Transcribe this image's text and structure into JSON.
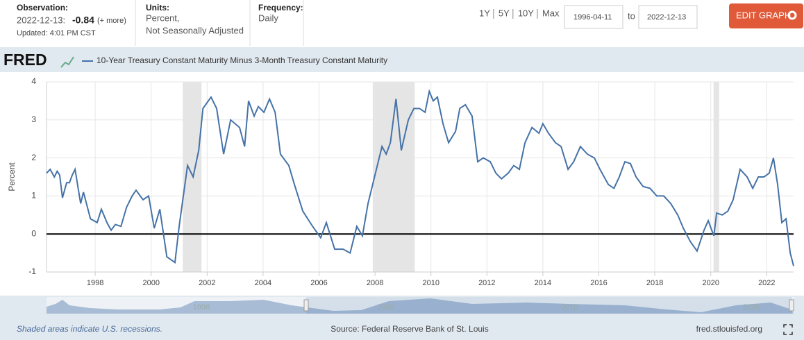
{
  "header": {
    "observation_label": "Observation:",
    "observation_date": "2022-12-13:",
    "observation_value": "-0.84",
    "more": "(+ more)",
    "updated": "Updated: 4:01 PM CST",
    "units_label": "Units:",
    "units_1": "Percent,",
    "units_2": "Not Seasonally Adjusted",
    "frequency_label": "Frequency:",
    "frequency": "Daily",
    "ranges": [
      "1Y",
      "5Y",
      "10Y",
      "Max"
    ],
    "start_date": "1996-04-11",
    "to": "to",
    "end_date": "2022-12-13",
    "edit_button": "EDIT GRAPH"
  },
  "logo": "FRED",
  "footer": {
    "note": "Shaded areas indicate U.S. recessions.",
    "source": "Source: Federal Reserve Bank of St. Louis",
    "site": "fred.stlouisfed.org"
  },
  "navigator": {
    "labels": [
      "1998",
      "2000",
      "2010",
      "2020"
    ]
  },
  "chart_data": {
    "type": "line",
    "ylabel": "Percent",
    "series": [
      {
        "name": "10-Year Treasury Constant Maturity Minus 3-Month Treasury Constant Maturity",
        "color": "#4572a7",
        "x": [
          1996.26,
          1996.39,
          1996.54,
          1996.64,
          1996.73,
          1996.83,
          1996.98,
          1997.08,
          1997.18,
          1997.28,
          1997.48,
          1997.58,
          1997.83,
          1998.07,
          1998.22,
          1998.42,
          1998.57,
          1998.72,
          1998.92,
          1999.12,
          1999.32,
          1999.46,
          1999.71,
          1999.91,
          2000.11,
          2000.31,
          2000.56,
          2000.85,
          2001.0,
          2001.3,
          2001.5,
          2001.7,
          2001.85,
          2002.14,
          2002.34,
          2002.59,
          2002.84,
          2003.16,
          2003.34,
          2003.48,
          2003.68,
          2003.83,
          2004.03,
          2004.23,
          2004.43,
          2004.62,
          2004.92,
          2005.12,
          2005.42,
          2005.77,
          2006.06,
          2006.26,
          2006.56,
          2006.86,
          2007.11,
          2007.35,
          2007.55,
          2007.75,
          2008.05,
          2008.25,
          2008.4,
          2008.55,
          2008.75,
          2008.94,
          2009.19,
          2009.39,
          2009.59,
          2009.79,
          2009.94,
          2010.08,
          2010.23,
          2010.43,
          2010.63,
          2010.88,
          2011.03,
          2011.23,
          2011.47,
          2011.67,
          2011.87,
          2012.12,
          2012.32,
          2012.52,
          2012.76,
          2012.96,
          2013.16,
          2013.36,
          2013.61,
          2013.86,
          2014.0,
          2014.2,
          2014.45,
          2014.65,
          2014.9,
          2015.1,
          2015.34,
          2015.59,
          2015.84,
          2016.04,
          2016.34,
          2016.54,
          2016.73,
          2016.93,
          2017.13,
          2017.33,
          2017.58,
          2017.83,
          2018.07,
          2018.32,
          2018.57,
          2018.82,
          2019.02,
          2019.27,
          2019.51,
          2019.76,
          2019.91,
          2020.11,
          2020.21,
          2020.41,
          2020.61,
          2020.8,
          2021.05,
          2021.3,
          2021.5,
          2021.7,
          2021.9,
          2022.09,
          2022.24,
          2022.39,
          2022.54,
          2022.69,
          2022.84,
          2022.96
        ],
        "values": [
          1.6,
          1.7,
          1.5,
          1.65,
          1.55,
          0.95,
          1.35,
          1.35,
          1.55,
          1.7,
          0.8,
          1.1,
          0.4,
          0.3,
          0.65,
          0.3,
          0.1,
          0.25,
          0.2,
          0.7,
          1.0,
          1.15,
          0.9,
          1.0,
          0.15,
          0.65,
          -0.6,
          -0.75,
          0.2,
          1.8,
          1.5,
          2.2,
          3.3,
          3.6,
          3.3,
          2.1,
          3.0,
          2.8,
          2.3,
          3.5,
          3.1,
          3.35,
          3.2,
          3.55,
          3.2,
          2.1,
          1.8,
          1.3,
          0.6,
          0.2,
          -0.1,
          0.3,
          -0.4,
          -0.4,
          -0.5,
          0.2,
          -0.05,
          0.8,
          1.7,
          2.3,
          2.1,
          2.4,
          3.55,
          2.2,
          3.0,
          3.3,
          3.3,
          3.2,
          3.75,
          3.5,
          3.6,
          2.9,
          2.4,
          2.7,
          3.3,
          3.4,
          3.1,
          1.9,
          2.0,
          1.9,
          1.6,
          1.45,
          1.6,
          1.8,
          1.7,
          2.4,
          2.8,
          2.65,
          2.9,
          2.65,
          2.4,
          2.3,
          1.7,
          1.9,
          2.3,
          2.1,
          2.0,
          1.7,
          1.3,
          1.2,
          1.5,
          1.9,
          1.85,
          1.5,
          1.25,
          1.2,
          1.0,
          1.0,
          0.8,
          0.5,
          0.15,
          -0.2,
          -0.45,
          0.1,
          0.35,
          -0.05,
          0.55,
          0.5,
          0.6,
          0.9,
          1.7,
          1.5,
          1.2,
          1.5,
          1.5,
          1.6,
          2.0,
          1.3,
          0.3,
          0.4,
          -0.5,
          -0.84
        ]
      }
    ],
    "recessions": [
      [
        2001.13,
        2001.8
      ],
      [
        2007.92,
        2009.42
      ],
      [
        2020.1,
        2020.3
      ]
    ],
    "xlim": [
      1996.26,
      2022.96
    ],
    "xticks": [
      1998,
      2000,
      2002,
      2004,
      2006,
      2008,
      2010,
      2012,
      2014,
      2016,
      2018,
      2020,
      2022
    ],
    "ylim": [
      -1,
      4
    ],
    "yticks": [
      -1,
      0,
      1,
      2,
      3,
      4
    ],
    "grid": true
  }
}
